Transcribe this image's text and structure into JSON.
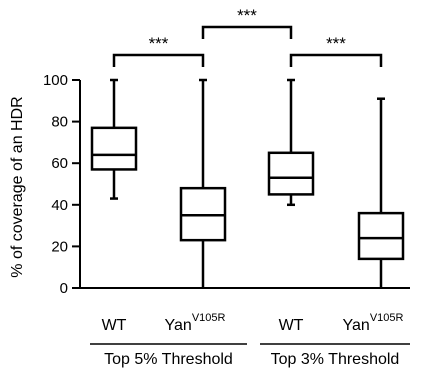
{
  "chart_data": {
    "type": "box",
    "ylabel": "% of coverage of an HDR",
    "ylim": [
      0,
      100
    ],
    "yticks": [
      0,
      20,
      40,
      60,
      80,
      100
    ],
    "groups": [
      {
        "label": "Top 5% Threshold",
        "members": [
          0,
          1
        ]
      },
      {
        "label": "Top 3% Threshold",
        "members": [
          2,
          3
        ]
      }
    ],
    "boxes": [
      {
        "label": "WT",
        "superscript": "",
        "min": 43,
        "q1": 57,
        "median": 64,
        "q3": 77,
        "max": 100
      },
      {
        "label": "Yan",
        "superscript": "V105R",
        "min": 0,
        "q1": 23,
        "median": 35,
        "q3": 48,
        "max": 100
      },
      {
        "label": "WT",
        "superscript": "",
        "min": 40,
        "q1": 45,
        "median": 53,
        "q3": 65,
        "max": 100
      },
      {
        "label": "Yan",
        "superscript": "V105R",
        "min": 0,
        "q1": 14,
        "median": 24,
        "q3": 36,
        "max": 91
      }
    ],
    "significance": [
      {
        "from": 0,
        "to": 1,
        "label": "***"
      },
      {
        "from": 1,
        "to": 2,
        "label": "***"
      },
      {
        "from": 2,
        "to": 3,
        "label": "***"
      }
    ]
  }
}
